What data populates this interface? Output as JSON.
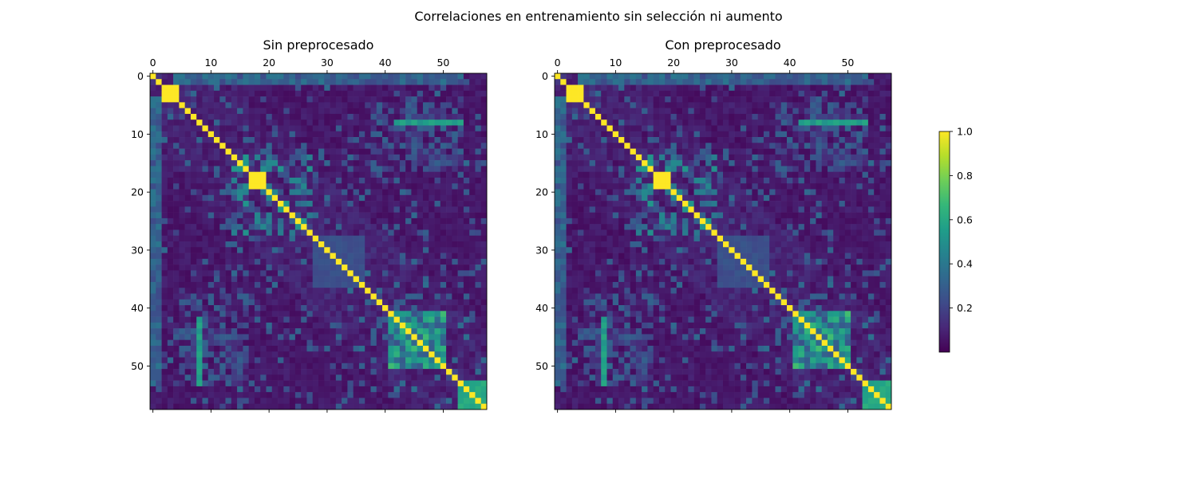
{
  "chart_data": {
    "type": "heatmap",
    "title": "Correlaciones en entrenamiento sin selección ni aumento",
    "matrix_size": 58,
    "colormap": "viridis",
    "color_range": [
      0,
      1
    ],
    "x_ticks": [
      0,
      10,
      20,
      30,
      40,
      50
    ],
    "y_ticks": [
      0,
      10,
      20,
      30,
      40,
      50
    ],
    "x_tick_position": "top",
    "panels": [
      {
        "title": "Sin preprocesado"
      },
      {
        "title": "Con preprocesado"
      }
    ],
    "colorbar": {
      "ticks": [
        "1.0",
        "0.8",
        "0.6",
        "0.4",
        "0.2"
      ],
      "tick_values": [
        1.0,
        0.8,
        0.6,
        0.4,
        0.2
      ],
      "range": [
        0.0,
        1.0
      ]
    },
    "notable_blocks": [
      {
        "rows": [
          2,
          4
        ],
        "cols": [
          2,
          4
        ],
        "value": 1.0
      },
      {
        "rows": [
          17,
          19
        ],
        "cols": [
          17,
          19
        ],
        "value": 1.0
      },
      {
        "rows": [
          28,
          36
        ],
        "cols": [
          28,
          36
        ],
        "value": 0.25
      },
      {
        "rows": [
          41,
          50
        ],
        "cols": [
          41,
          50
        ],
        "value": 0.55
      },
      {
        "rows": [
          53,
          57
        ],
        "cols": [
          53,
          57
        ],
        "value": 0.6
      }
    ]
  }
}
